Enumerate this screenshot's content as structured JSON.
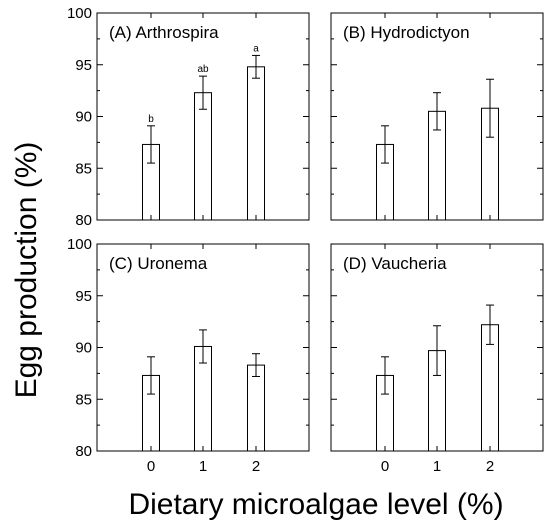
{
  "ylabel": "Egg production (%)",
  "xlabel": "Dietary microalgae level (%)",
  "chart_data": [
    {
      "type": "bar",
      "title": "(A) Arthrospira",
      "categories": [
        "0",
        "1",
        "2"
      ],
      "values": [
        87.3,
        92.3,
        94.8
      ],
      "errors": [
        1.8,
        1.6,
        1.1
      ],
      "significance": [
        "b",
        "ab",
        "a"
      ],
      "ylim": [
        80,
        100
      ],
      "yticks": [
        80,
        85,
        90,
        95,
        100
      ]
    },
    {
      "type": "bar",
      "title": "(B) Hydrodictyon",
      "categories": [
        "0",
        "1",
        "2"
      ],
      "values": [
        87.3,
        90.5,
        90.8
      ],
      "errors": [
        1.8,
        1.8,
        2.8
      ],
      "significance": [
        "",
        "",
        ""
      ],
      "ylim": [
        80,
        100
      ],
      "yticks": [
        80,
        85,
        90,
        95,
        100
      ]
    },
    {
      "type": "bar",
      "title": "(C) Uronema",
      "categories": [
        "0",
        "1",
        "2"
      ],
      "values": [
        87.3,
        90.1,
        88.3
      ],
      "errors": [
        1.8,
        1.6,
        1.1
      ],
      "significance": [
        "",
        "",
        ""
      ],
      "ylim": [
        80,
        100
      ],
      "yticks": [
        80,
        85,
        90,
        95,
        100
      ]
    },
    {
      "type": "bar",
      "title": "(D) Vaucheria",
      "categories": [
        "0",
        "1",
        "2"
      ],
      "values": [
        87.3,
        89.7,
        92.2
      ],
      "errors": [
        1.8,
        2.4,
        1.9
      ],
      "significance": [
        "",
        "",
        ""
      ],
      "ylim": [
        80,
        100
      ],
      "yticks": [
        80,
        85,
        90,
        95,
        100
      ]
    }
  ]
}
